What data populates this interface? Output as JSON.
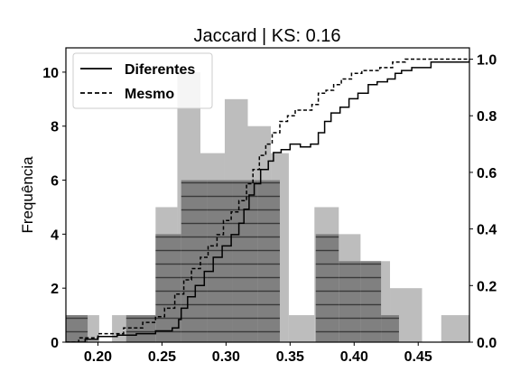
{
  "chart_data": {
    "type": "histogram-with-ecdf",
    "title": "Jaccard | KS: 0.16",
    "xlabel": "",
    "ylabel": "Frequência",
    "y2label": "",
    "xlim": [
      0.175,
      0.49
    ],
    "ylim": [
      0,
      10.9
    ],
    "y2lim": [
      0,
      1.04
    ],
    "xticks": [
      "0.20",
      "0.25",
      "0.30",
      "0.35",
      "0.40",
      "0.45"
    ],
    "xtick_values": [
      0.2,
      0.25,
      0.3,
      0.35,
      0.4,
      0.45
    ],
    "yticks": [
      "0",
      "2",
      "4",
      "6",
      "8",
      "10"
    ],
    "ytick_values": [
      0,
      2,
      4,
      6,
      8,
      10
    ],
    "y2ticks": [
      "0.0",
      "0.2",
      "0.4",
      "0.6",
      "0.8",
      "1.0"
    ],
    "y2tick_values": [
      0.0,
      0.2,
      0.4,
      0.6,
      0.8,
      1.0
    ],
    "legend_position": "top-left",
    "series": [
      {
        "name": "Diferentes",
        "kind": "histogram",
        "color": "#808080",
        "hatch": "horizontal",
        "bins": [
          {
            "x0": 0.175,
            "x1": 0.192,
            "count": 1
          },
          {
            "x0": 0.222,
            "x1": 0.245,
            "count": 1
          },
          {
            "x0": 0.245,
            "x1": 0.265,
            "count": 4
          },
          {
            "x0": 0.265,
            "x1": 0.285,
            "count": 6
          },
          {
            "x0": 0.285,
            "x1": 0.305,
            "count": 6
          },
          {
            "x0": 0.305,
            "x1": 0.325,
            "count": 6
          },
          {
            "x0": 0.325,
            "x1": 0.342,
            "count": 6
          },
          {
            "x0": 0.37,
            "x1": 0.388,
            "count": 4
          },
          {
            "x0": 0.388,
            "x1": 0.405,
            "count": 3
          },
          {
            "x0": 0.405,
            "x1": 0.421,
            "count": 3
          },
          {
            "x0": 0.421,
            "x1": 0.435,
            "count": 1
          }
        ]
      },
      {
        "name": "Mesmo",
        "kind": "histogram",
        "color": "#bdbdbd",
        "bins": [
          {
            "x0": 0.175,
            "x1": 0.192,
            "count": 1
          },
          {
            "x0": 0.192,
            "x1": 0.201,
            "count": 1
          },
          {
            "x0": 0.211,
            "x1": 0.222,
            "count": 1
          },
          {
            "x0": 0.245,
            "x1": 0.262,
            "count": 5
          },
          {
            "x0": 0.262,
            "x1": 0.28,
            "count": 10
          },
          {
            "x0": 0.28,
            "x1": 0.299,
            "count": 7
          },
          {
            "x0": 0.299,
            "x1": 0.317,
            "count": 9
          },
          {
            "x0": 0.317,
            "x1": 0.335,
            "count": 8
          },
          {
            "x0": 0.335,
            "x1": 0.349,
            "count": 7
          },
          {
            "x0": 0.349,
            "x1": 0.369,
            "count": 1
          },
          {
            "x0": 0.369,
            "x1": 0.388,
            "count": 5
          },
          {
            "x0": 0.388,
            "x1": 0.405,
            "count": 4
          },
          {
            "x0": 0.405,
            "x1": 0.428,
            "count": 3
          },
          {
            "x0": 0.428,
            "x1": 0.453,
            "count": 2
          },
          {
            "x0": 0.468,
            "x1": 0.49,
            "count": 1
          }
        ]
      },
      {
        "name": "Diferentes",
        "kind": "ecdf",
        "line": "solid",
        "color": "#000000",
        "points": [
          [
            0.175,
            0.0
          ],
          [
            0.19,
            0.01
          ],
          [
            0.2,
            0.02
          ],
          [
            0.215,
            0.025
          ],
          [
            0.23,
            0.03
          ],
          [
            0.245,
            0.04
          ],
          [
            0.258,
            0.05
          ],
          [
            0.263,
            0.08
          ],
          [
            0.265,
            0.12
          ],
          [
            0.27,
            0.16
          ],
          [
            0.276,
            0.2
          ],
          [
            0.283,
            0.25
          ],
          [
            0.29,
            0.3
          ],
          [
            0.297,
            0.34
          ],
          [
            0.304,
            0.38
          ],
          [
            0.31,
            0.42
          ],
          [
            0.314,
            0.47
          ],
          [
            0.318,
            0.52
          ],
          [
            0.322,
            0.56
          ],
          [
            0.327,
            0.61
          ],
          [
            0.333,
            0.64
          ],
          [
            0.337,
            0.67
          ],
          [
            0.343,
            0.68
          ],
          [
            0.35,
            0.7
          ],
          [
            0.358,
            0.69
          ],
          [
            0.366,
            0.7
          ],
          [
            0.372,
            0.74
          ],
          [
            0.377,
            0.78
          ],
          [
            0.382,
            0.81
          ],
          [
            0.389,
            0.83
          ],
          [
            0.396,
            0.86
          ],
          [
            0.403,
            0.88
          ],
          [
            0.411,
            0.91
          ],
          [
            0.418,
            0.92
          ],
          [
            0.426,
            0.93
          ],
          [
            0.432,
            0.95
          ],
          [
            0.437,
            0.96
          ],
          [
            0.445,
            0.97
          ],
          [
            0.46,
            0.99
          ],
          [
            0.49,
            1.0
          ]
        ]
      },
      {
        "name": "Mesmo",
        "kind": "ecdf",
        "line": "dashed",
        "color": "#000000",
        "points": [
          [
            0.175,
            0.0
          ],
          [
            0.185,
            0.015
          ],
          [
            0.2,
            0.03
          ],
          [
            0.22,
            0.05
          ],
          [
            0.235,
            0.07
          ],
          [
            0.245,
            0.09
          ],
          [
            0.252,
            0.12
          ],
          [
            0.26,
            0.17
          ],
          [
            0.267,
            0.22
          ],
          [
            0.273,
            0.26
          ],
          [
            0.28,
            0.3
          ],
          [
            0.286,
            0.34
          ],
          [
            0.293,
            0.38
          ],
          [
            0.298,
            0.43
          ],
          [
            0.304,
            0.46
          ],
          [
            0.31,
            0.5
          ],
          [
            0.316,
            0.56
          ],
          [
            0.321,
            0.61
          ],
          [
            0.326,
            0.66
          ],
          [
            0.331,
            0.7
          ],
          [
            0.336,
            0.74
          ],
          [
            0.342,
            0.78
          ],
          [
            0.348,
            0.8
          ],
          [
            0.354,
            0.82
          ],
          [
            0.361,
            0.82
          ],
          [
            0.367,
            0.84
          ],
          [
            0.372,
            0.88
          ],
          [
            0.378,
            0.89
          ],
          [
            0.384,
            0.91
          ],
          [
            0.39,
            0.93
          ],
          [
            0.398,
            0.95
          ],
          [
            0.406,
            0.96
          ],
          [
            0.42,
            0.97
          ],
          [
            0.43,
            0.99
          ],
          [
            0.44,
            1.0
          ],
          [
            0.49,
            1.0
          ]
        ]
      }
    ],
    "legend": [
      {
        "label": "Diferentes",
        "line": "solid"
      },
      {
        "label": "Mesmo",
        "line": "dashed"
      }
    ]
  }
}
